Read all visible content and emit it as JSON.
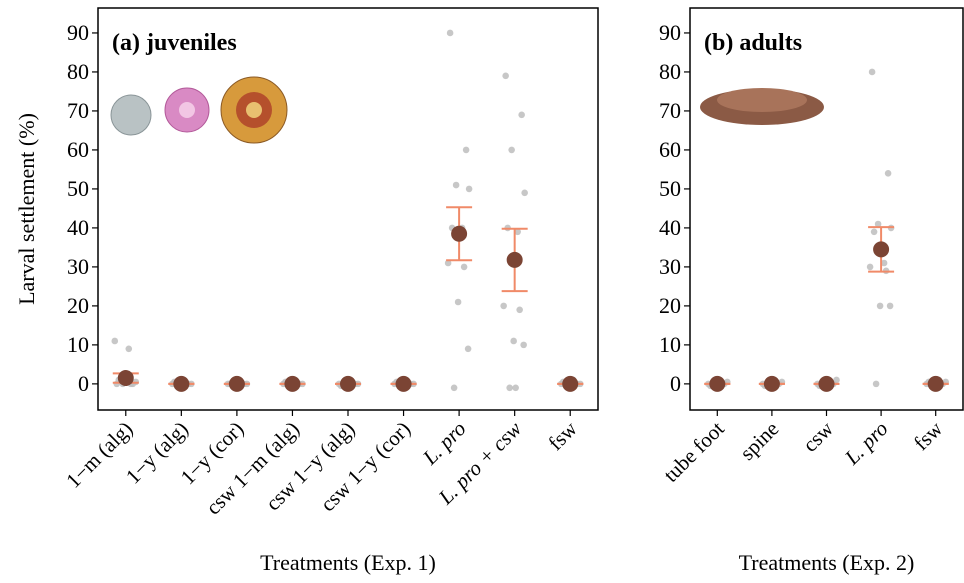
{
  "chart_data": [
    {
      "type": "dotplot",
      "title": "(a) juveniles",
      "x_label": "Treatments (Exp. 1)",
      "y_label": "Larval settlement (%)",
      "categories": [
        "1−m (alg)",
        "1−y (alg)",
        "1−y (cor)",
        "csw 1−m (alg)",
        "csw 1−y (alg)",
        "csw 1−y (cor)",
        "L. pro",
        "L. pro + csw",
        "fsw"
      ],
      "italic_categories": [
        "L. pro"
      ],
      "means": [
        1.5,
        0,
        0,
        0,
        0,
        0,
        38.5,
        31.8,
        0
      ],
      "errors": [
        1.2,
        0,
        0,
        0,
        0,
        0,
        6.8,
        8,
        0
      ],
      "points": [
        [
          0,
          0,
          0,
          0.5,
          1,
          9,
          11,
          0
        ],
        [
          0,
          0,
          0,
          0,
          0.5,
          0
        ],
        [
          0,
          0,
          0,
          0,
          0,
          0
        ],
        [
          0,
          0,
          0,
          0,
          0.5,
          0.5
        ],
        [
          0,
          0,
          0,
          0,
          -0.5,
          0.5
        ],
        [
          0,
          0,
          0,
          0,
          0.5,
          0.5
        ],
        [
          90,
          60,
          51,
          50,
          40,
          40,
          31,
          30,
          21,
          9,
          -1
        ],
        [
          79,
          69,
          60,
          49,
          40,
          39,
          20,
          19,
          11,
          10,
          -1,
          -1
        ],
        [
          0,
          0,
          0,
          0,
          0.5,
          1
        ]
      ],
      "ylim": [
        -6.7,
        96.4
      ],
      "yticks": [
        0,
        10,
        20,
        30,
        40,
        50,
        60,
        70,
        80,
        90
      ],
      "mean_color": "#7b4434",
      "error_color": "#f08a68",
      "point_color": "#bdbdbd"
    },
    {
      "type": "dotplot",
      "title": "(b) adults",
      "x_label": "Treatments (Exp. 2)",
      "categories": [
        "tube foot",
        "spine",
        "csw",
        "L. pro",
        "fsw"
      ],
      "italic_categories": [
        "L. pro"
      ],
      "means": [
        0,
        0,
        0,
        34.5,
        0
      ],
      "errors": [
        0,
        0,
        0,
        5.7,
        0
      ],
      "points": [
        [
          0,
          0,
          0,
          0.5,
          -0.5
        ],
        [
          0,
          0,
          0,
          0.5,
          -0.5
        ],
        [
          0,
          0,
          0,
          1,
          -0.5,
          0.5
        ],
        [
          80,
          54,
          41,
          40,
          39,
          31,
          30,
          29,
          20,
          20,
          0
        ],
        [
          0,
          0,
          0,
          0.5,
          0.5,
          1
        ]
      ],
      "ylim": [
        -6.7,
        96.4
      ],
      "yticks": [
        0,
        10,
        20,
        30,
        40,
        50,
        60,
        70,
        80,
        90
      ],
      "mean_color": "#7b4434",
      "error_color": "#f08a68",
      "point_color": "#bdbdbd"
    }
  ]
}
